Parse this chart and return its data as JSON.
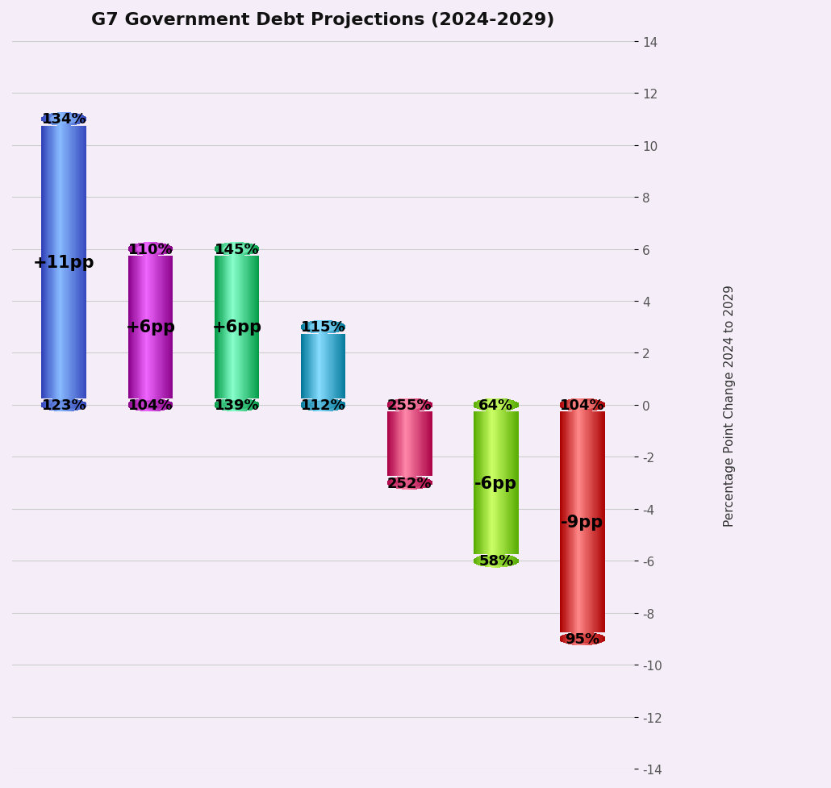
{
  "title": "G7 Government Debt Projections (2024-2029)",
  "ylabel": "Percentage Point Change 2024 to 2029",
  "background_color": "#f5eef8",
  "ylim": [
    -14,
    14
  ],
  "yticks": [
    -14,
    -12,
    -10,
    -8,
    -6,
    -4,
    -2,
    0,
    2,
    4,
    6,
    8,
    10,
    12,
    14
  ],
  "bars": [
    {
      "x": 0,
      "low": 0,
      "high": 11,
      "color_main": "#5588ee",
      "color_light": "#88bbff",
      "color_dark": "#3344bb",
      "label_top": "134%",
      "label_bottom": "123%",
      "label_mid": "+11pp"
    },
    {
      "x": 1,
      "low": 0,
      "high": 6,
      "color_main": "#cc00cc",
      "color_light": "#ee66ff",
      "color_dark": "#880088",
      "label_top": "110%",
      "label_bottom": "104%",
      "label_mid": "+6pp"
    },
    {
      "x": 2,
      "low": 0,
      "high": 6,
      "color_main": "#00cc66",
      "color_light": "#88ffcc",
      "color_dark": "#009944",
      "label_top": "145%",
      "label_bottom": "139%",
      "label_mid": "+6pp"
    },
    {
      "x": 3,
      "low": 0,
      "high": 3,
      "color_main": "#00aadd",
      "color_light": "#88ddff",
      "color_dark": "#007799",
      "label_top": "115%",
      "label_bottom": "112%",
      "label_mid": ""
    },
    {
      "x": 4,
      "low": -3,
      "high": 0,
      "color_main": "#ee1166",
      "color_light": "#ff88aa",
      "color_dark": "#aa0044",
      "label_top": "255%",
      "label_bottom": "252%",
      "label_mid": ""
    },
    {
      "x": 5,
      "low": -6,
      "high": 0,
      "color_main": "#88ee00",
      "color_light": "#ccff66",
      "color_dark": "#55aa00",
      "label_top": "64%",
      "label_bottom": "58%",
      "label_mid": "-6pp"
    },
    {
      "x": 6,
      "low": -9,
      "high": 0,
      "color_main": "#ee2222",
      "color_light": "#ff8888",
      "color_dark": "#aa0000",
      "label_top": "104%",
      "label_bottom": "95%",
      "label_mid": "-9pp"
    }
  ]
}
